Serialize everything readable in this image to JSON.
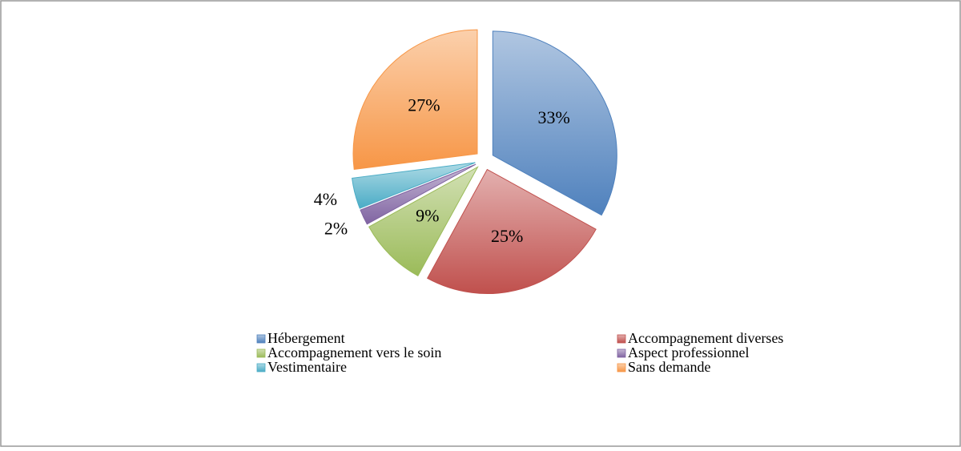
{
  "chart_data": {
    "type": "pie",
    "categories": [
      "Hébergement",
      "Accompagnement diverses",
      "Accompagnement vers le soin",
      "Aspect professionnel",
      "Vestimentaire",
      "Sans demande"
    ],
    "values": [
      33,
      25,
      9,
      2,
      4,
      27
    ],
    "value_labels": [
      "33%",
      "25%",
      "9%",
      "2%",
      "4%",
      "27%"
    ],
    "colors": [
      "#4f81bd",
      "#c0504d",
      "#9bbb59",
      "#8064a2",
      "#4bacc6",
      "#f79646"
    ],
    "legend": "bottom"
  }
}
